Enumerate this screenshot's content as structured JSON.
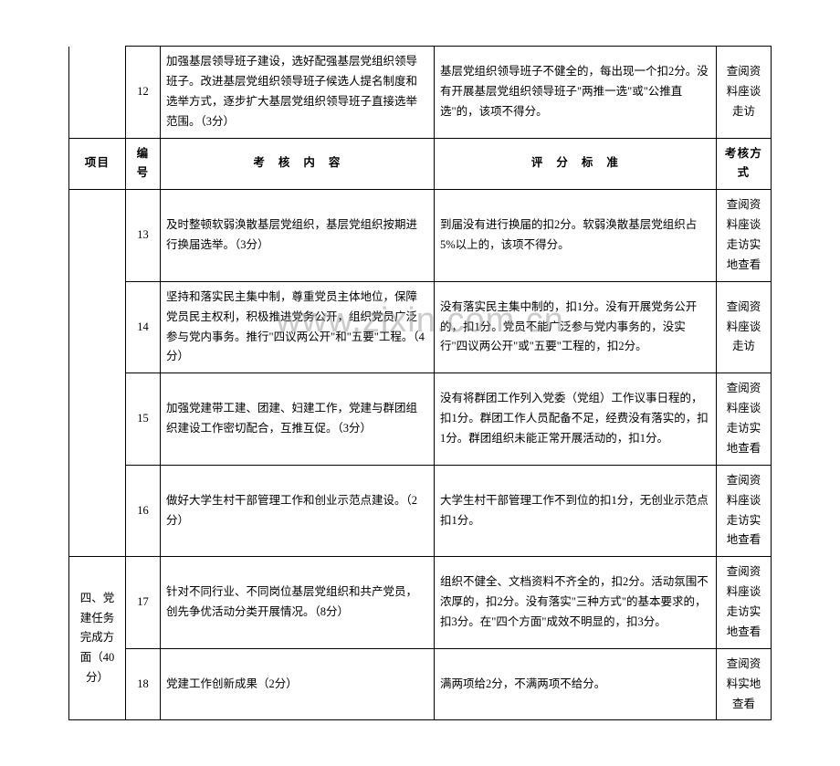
{
  "watermark": "www.zixin.com.cn",
  "headers": {
    "project": "项目",
    "num": "编号",
    "content": "考　核　内　容",
    "criteria": "评　分　标　准",
    "method": "考核方式"
  },
  "project_label": "四、党建任务完成方面（40分）",
  "rows": [
    {
      "num": "12",
      "content": "加强基层领导班子建设，选好配强基层党组织领导班子。改进基层党组织领导班子候选人提名制度和选举方式，逐步扩大基层党组织领导班子直接选举范围。（3分）",
      "criteria": "基层党组织领导班子不健全的，每出现一个扣2分。没有开展基层党组织领导班子\"两推一选\"或\"公推直选\"的，该项不得分。",
      "method": "查阅资料座谈走访"
    },
    {
      "num": "13",
      "content": "及时整顿软弱涣散基层党组织，基层党组织按期进行换届选举。（3分）",
      "criteria": "到届没有进行换届的扣2分。软弱涣散基层党组织占5%以上的，该项不得分。",
      "method": "查阅资料座谈走访实地查看"
    },
    {
      "num": "14",
      "content": "坚持和落实民主集中制，尊重党员主体地位，保障党员民主权利，积极推进党务公开，组织党员广泛参与党内事务。推行\"四议两公开\"和\"五要\"工程。（4分）",
      "criteria": "没有落实民主集中制的，扣1分。没有开展党务公开的，扣1分。党员不能广泛参与党内事务的，没实行\"四议两公开\"或\"五要\"工程的，扣2分。",
      "method": "查阅资料座谈走访"
    },
    {
      "num": "15",
      "content": "加强党建带工建、团建、妇建工作，党建与群团组织建设工作密切配合，互推互促。（3分）",
      "criteria": "没有将群团工作列入党委（党组）工作议事日程的，扣1分。群团工作人员配备不足，经费没有落实的，扣1分。群团组织未能正常开展活动的，扣1分。",
      "method": "查阅资料座谈走访实地查看"
    },
    {
      "num": "16",
      "content": "做好大学生村干部管理工作和创业示范点建设。（2分）",
      "criteria": "大学生村干部管理工作不到位的扣1分，无创业示范点扣1分。",
      "method": "查阅资料座谈走访实地查看"
    },
    {
      "num": "17",
      "content": "针对不同行业、不同岗位基层党组织和共产党员，创先争优活动分类开展情况。（8分）",
      "criteria": "组织不健全、文档资料不齐全的，扣2分。活动氛围不浓厚的，扣2分。没有落实\"三种方式\"的基本要求的，扣3分。在\"四个方面\"成效不明显的，扣3分。",
      "method": "查阅资料座谈走访实地查看"
    },
    {
      "num": "18",
      "content": "党建工作创新成果（2分）",
      "criteria": "满两项给2分，不满两项不给分。",
      "method": "查阅资料实地查看"
    }
  ]
}
